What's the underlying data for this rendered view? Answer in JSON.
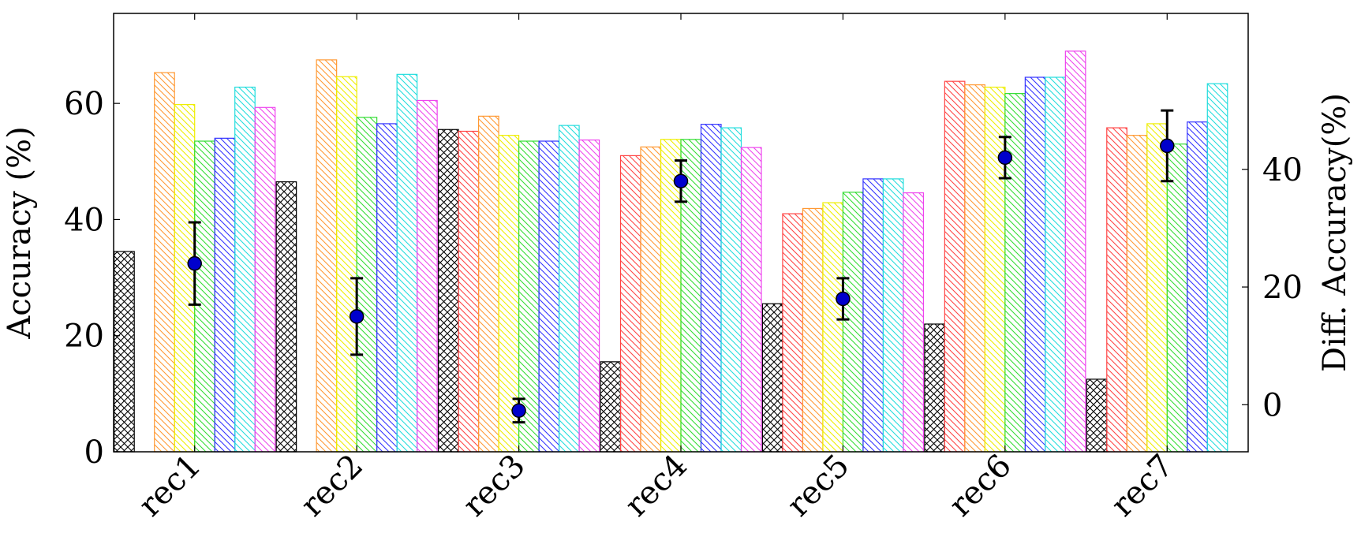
{
  "chart_data": {
    "type": "bar",
    "title": "",
    "xlabel": "",
    "ylabel": "Accuracy (%)",
    "y2label": "Diff. Accuracy(%)",
    "categories": [
      "rec1",
      "rec2",
      "rec3",
      "rec4",
      "rec5",
      "rec6",
      "rec7"
    ],
    "ylim": [
      0,
      75.5
    ],
    "y2lim": [
      -8,
      66.5
    ],
    "yticks": [
      "0",
      "20",
      "40",
      "60"
    ],
    "y2ticks": [
      "0",
      "20",
      "40"
    ],
    "grid": false,
    "legend": "none",
    "series": [
      {
        "pattern": "crosshatch",
        "color": "#000000",
        "values": [
          34.5,
          46.5,
          55.5,
          15.5,
          25.5,
          22.0,
          12.5
        ]
      },
      {
        "pattern": "diagonal",
        "color": "#ff4444",
        "values": [
          null,
          null,
          55.2,
          51.0,
          41.0,
          63.8,
          55.8
        ]
      },
      {
        "pattern": "diagonal",
        "color": "#ff9933",
        "values": [
          65.3,
          67.5,
          57.8,
          52.5,
          41.9,
          63.2,
          54.5
        ]
      },
      {
        "pattern": "diagonal",
        "color": "#eeee00",
        "values": [
          59.8,
          64.6,
          54.5,
          53.8,
          42.9,
          62.8,
          56.5
        ]
      },
      {
        "pattern": "diagonal",
        "color": "#33dd33",
        "values": [
          53.5,
          57.6,
          53.5,
          53.8,
          44.7,
          61.7,
          53.0
        ]
      },
      {
        "pattern": "diagonal",
        "color": "#3333ff",
        "values": [
          54.0,
          56.5,
          53.5,
          56.4,
          47.0,
          64.5,
          56.8
        ]
      },
      {
        "pattern": "diagonal",
        "color": "#22dddd",
        "values": [
          62.8,
          65.0,
          56.2,
          55.8,
          47.0,
          64.5,
          63.4
        ]
      },
      {
        "pattern": "diagonal",
        "color": "#ee44ee",
        "values": [
          59.3,
          60.5,
          53.7,
          52.4,
          44.6,
          69.0,
          null
        ]
      }
    ],
    "diff_points": {
      "axis": "right",
      "color": "#0000cc",
      "values": [
        24.0,
        15.0,
        -1.0,
        38.0,
        18.0,
        42.0,
        44.0
      ],
      "error": [
        7.0,
        6.5,
        2.0,
        3.5,
        3.5,
        3.5,
        6.0
      ]
    }
  }
}
